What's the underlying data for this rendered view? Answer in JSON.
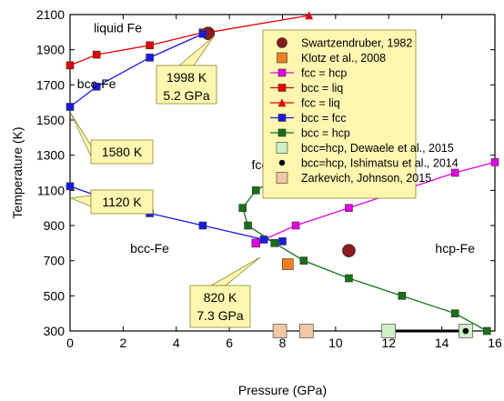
{
  "chart_data": {
    "type": "line",
    "title": "",
    "xlabel": "Pressure (GPa)",
    "ylabel": "Temperature (K)",
    "xlim": [
      0,
      16
    ],
    "ylim": [
      300,
      2100
    ],
    "xticks": [
      0,
      2,
      4,
      6,
      8,
      10,
      12,
      14,
      16
    ],
    "yticks": [
      300,
      500,
      700,
      900,
      1100,
      1300,
      1500,
      1700,
      1900,
      2100
    ],
    "grid": false,
    "legend_position": "upper-right",
    "series": [
      {
        "name": "Swartzendruber, 1982",
        "kind": "scatter",
        "marker": "circle",
        "color": "#8B1A1A",
        "points": [
          [
            5.2,
            1993
          ],
          [
            10.5,
            757
          ]
        ]
      },
      {
        "name": "Klotz et al., 2008",
        "kind": "scatter",
        "marker": "square",
        "color": "#F07F1E",
        "points": [
          [
            8.2,
            680
          ]
        ]
      },
      {
        "name": "fcc = hcp",
        "kind": "line",
        "marker": "square",
        "color": "#E600E6",
        "points": [
          [
            7.0,
            800
          ],
          [
            8.5,
            900
          ],
          [
            10.5,
            1000
          ],
          [
            12.5,
            1100
          ],
          [
            14.5,
            1200
          ],
          [
            16.0,
            1260
          ]
        ]
      },
      {
        "name": "bcc = liq",
        "kind": "line",
        "marker": "square",
        "color": "#E60000",
        "points": [
          [
            0,
            1811
          ],
          [
            1.0,
            1872
          ],
          [
            3.0,
            1925
          ],
          [
            5.0,
            1998
          ]
        ]
      },
      {
        "name": "fcc = liq",
        "kind": "line",
        "marker": "triangle",
        "color": "#E60000",
        "points": [
          [
            5.2,
            1998
          ],
          [
            9.0,
            2095
          ]
        ]
      },
      {
        "name": "bcc = fcc",
        "kind": "line",
        "marker": "square",
        "color": "#1A1AE6",
        "points": [
          [
            0,
            1123
          ],
          [
            1.0,
            1070
          ],
          [
            3.0,
            970
          ],
          [
            5.0,
            900
          ],
          [
            7.3,
            820
          ],
          [
            8.0,
            810
          ],
          [
            0,
            1575
          ],
          [
            1.0,
            1690
          ],
          [
            3.0,
            1855
          ],
          [
            5.0,
            1990
          ]
        ]
      },
      {
        "name": "bcc = hcp",
        "kind": "line",
        "marker": "square",
        "color": "#177217",
        "points": [
          [
            6.5,
            1000
          ],
          [
            6.7,
            900
          ],
          [
            7.7,
            800
          ],
          [
            8.8,
            700
          ],
          [
            10.5,
            600
          ],
          [
            12.5,
            500
          ],
          [
            14.5,
            400
          ],
          [
            15.7,
            300
          ],
          [
            7.0,
            1100
          ],
          [
            8.2,
            1200
          ],
          [
            9.0,
            1300
          ]
        ]
      },
      {
        "name": "bcc=hcp, Dewaele et al., 2015",
        "kind": "scatter",
        "marker": "square",
        "color": "#CFF0C8",
        "points": [
          [
            12.0,
            300
          ],
          [
            14.9,
            300
          ]
        ]
      },
      {
        "name": "bcc=hcp, Ishimatsu et al., 2014",
        "kind": "scatter",
        "marker": "circle",
        "color": "#000000",
        "points": [
          [
            14.9,
            300
          ]
        ]
      },
      {
        "name": "Zarkevich, Johnson, 2015",
        "kind": "scatter",
        "marker": "square",
        "color": "#F0C8A4",
        "points": [
          [
            7.9,
            300
          ],
          [
            8.9,
            300
          ]
        ]
      }
    ],
    "region_labels": [
      {
        "text": "liquid Fe",
        "x": 1.8,
        "y": 2000
      },
      {
        "text": "bcc-Fe",
        "x": 1.0,
        "y": 1680
      },
      {
        "text": "fcc-Fe",
        "x": 7.5,
        "y": 1220
      },
      {
        "text": "bcc-Fe",
        "x": 3.0,
        "y": 745
      },
      {
        "text": "hcp-Fe",
        "x": 14.5,
        "y": 745
      }
    ],
    "callouts": [
      {
        "lines": [
          "1998 K",
          "5.2 GPa"
        ],
        "target": [
          5.2,
          1998
        ]
      },
      {
        "lines": [
          "1580 K"
        ],
        "target": [
          0,
          1580
        ]
      },
      {
        "lines": [
          "1120 K"
        ],
        "target": [
          0,
          1120
        ]
      },
      {
        "lines": [
          "820 K",
          "7.3 GPa"
        ],
        "target": [
          7.3,
          820
        ]
      }
    ],
    "extra_line": {
      "description": "black horizontal segment along bottom from 12 to 15 GPa at 300 K",
      "color": "#000000",
      "points": [
        [
          12.0,
          300
        ],
        [
          15.0,
          300
        ]
      ]
    }
  }
}
